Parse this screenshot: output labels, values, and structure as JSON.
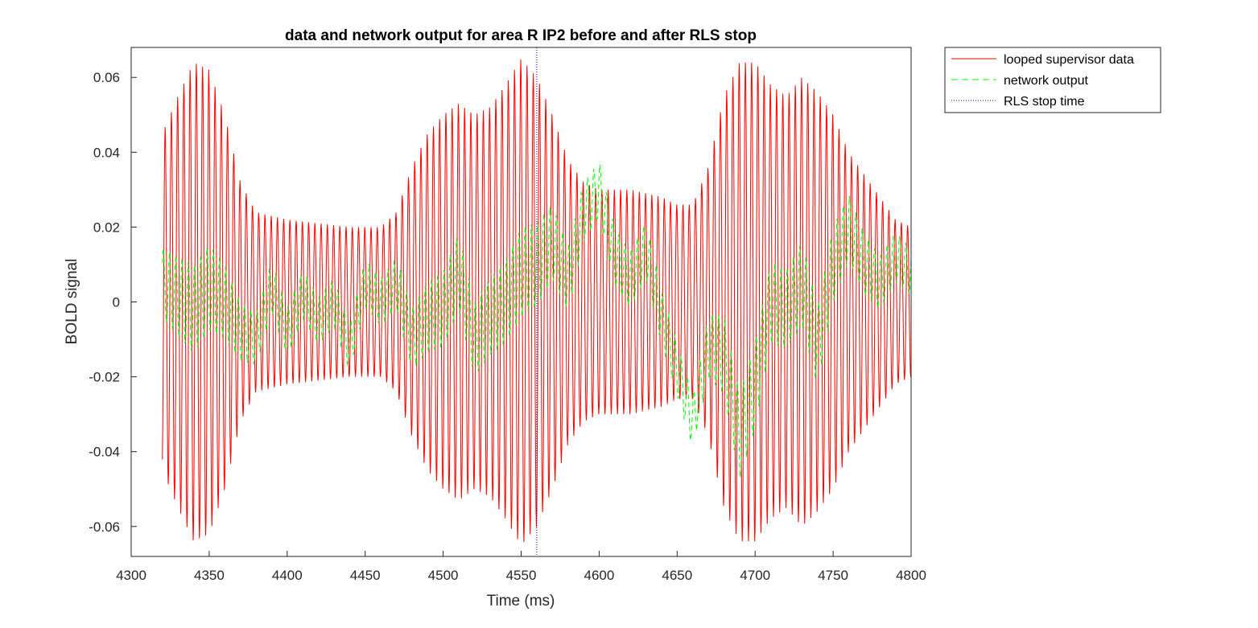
{
  "chart_data": {
    "type": "line",
    "title": "data and network output for area R IP2 before and after RLS stop",
    "xlabel": "Time (ms)",
    "ylabel": "BOLD signal",
    "xlim": [
      4300,
      4800
    ],
    "ylim": [
      -0.068,
      0.068
    ],
    "xticks": [
      4300,
      4350,
      4400,
      4450,
      4500,
      4550,
      4600,
      4650,
      4700,
      4750,
      4800
    ],
    "xtick_labels": [
      "4300",
      "4350",
      "4400",
      "4450",
      "4500",
      "4550",
      "4600",
      "4650",
      "4700",
      "4750",
      "4800"
    ],
    "yticks": [
      -0.06,
      -0.04,
      -0.02,
      0,
      0.02,
      0.04,
      0.06
    ],
    "ytick_labels": [
      "-0.06",
      "-0.04",
      "-0.02",
      "0",
      "0.02",
      "0.04",
      "0.06"
    ],
    "grid": false,
    "legend_position": "outside-top-right",
    "x_sample_range": [
      4320,
      4800
    ],
    "series": [
      {
        "name": "looped supervisor data",
        "style": "solid",
        "color": "#ff0000",
        "oscillation_period_ms": 4,
        "envelope_points": [
          [
            4320,
            0.045
          ],
          [
            4330,
            0.055
          ],
          [
            4340,
            0.064
          ],
          [
            4350,
            0.062
          ],
          [
            4360,
            0.05
          ],
          [
            4370,
            0.032
          ],
          [
            4380,
            0.024
          ],
          [
            4390,
            0.023
          ],
          [
            4400,
            0.022
          ],
          [
            4420,
            0.021
          ],
          [
            4440,
            0.02
          ],
          [
            4460,
            0.02
          ],
          [
            4470,
            0.024
          ],
          [
            4480,
            0.036
          ],
          [
            4490,
            0.045
          ],
          [
            4500,
            0.05
          ],
          [
            4510,
            0.053
          ],
          [
            4520,
            0.05
          ],
          [
            4530,
            0.052
          ],
          [
            4540,
            0.058
          ],
          [
            4550,
            0.065
          ],
          [
            4560,
            0.06
          ],
          [
            4570,
            0.05
          ],
          [
            4580,
            0.038
          ],
          [
            4590,
            0.032
          ],
          [
            4600,
            0.03
          ],
          [
            4620,
            0.03
          ],
          [
            4640,
            0.028
          ],
          [
            4650,
            0.026
          ],
          [
            4660,
            0.026
          ],
          [
            4670,
            0.036
          ],
          [
            4680,
            0.055
          ],
          [
            4690,
            0.064
          ],
          [
            4700,
            0.064
          ],
          [
            4710,
            0.058
          ],
          [
            4720,
            0.055
          ],
          [
            4730,
            0.06
          ],
          [
            4740,
            0.056
          ],
          [
            4750,
            0.05
          ],
          [
            4760,
            0.04
          ],
          [
            4770,
            0.034
          ],
          [
            4780,
            0.028
          ],
          [
            4790,
            0.022
          ],
          [
            4800,
            0.02
          ]
        ]
      },
      {
        "name": "network output",
        "style": "dashed",
        "color": "#00ff00",
        "baseline_points": [
          [
            4320,
            0.005
          ],
          [
            4340,
            -0.002
          ],
          [
            4350,
            0.004
          ],
          [
            4360,
            0.0
          ],
          [
            4370,
            -0.008
          ],
          [
            4380,
            -0.01
          ],
          [
            4390,
            0.004
          ],
          [
            4400,
            -0.008
          ],
          [
            4410,
            0.002
          ],
          [
            4420,
            -0.005
          ],
          [
            4430,
            0.0
          ],
          [
            4440,
            -0.012
          ],
          [
            4450,
            0.005
          ],
          [
            4460,
            0.0
          ],
          [
            4470,
            0.005
          ],
          [
            4480,
            -0.01
          ],
          [
            4490,
            -0.004
          ],
          [
            4500,
            -0.002
          ],
          [
            4510,
            0.008
          ],
          [
            4520,
            -0.01
          ],
          [
            4530,
            -0.004
          ],
          [
            4540,
            0.0
          ],
          [
            4550,
            0.008
          ],
          [
            4560,
            0.01
          ],
          [
            4570,
            0.016
          ],
          [
            4580,
            0.006
          ],
          [
            4590,
            0.024
          ],
          [
            4600,
            0.03
          ],
          [
            4610,
            0.012
          ],
          [
            4620,
            0.006
          ],
          [
            4630,
            0.014
          ],
          [
            4640,
            -0.004
          ],
          [
            4650,
            -0.018
          ],
          [
            4660,
            -0.032
          ],
          [
            4670,
            -0.012
          ],
          [
            4680,
            -0.014
          ],
          [
            4690,
            -0.036
          ],
          [
            4700,
            -0.022
          ],
          [
            4710,
            0.0
          ],
          [
            4720,
            -0.002
          ],
          [
            4730,
            0.005
          ],
          [
            4740,
            -0.012
          ],
          [
            4750,
            0.01
          ],
          [
            4760,
            0.02
          ],
          [
            4770,
            0.01
          ],
          [
            4780,
            0.005
          ],
          [
            4790,
            0.012
          ],
          [
            4800,
            0.008
          ]
        ],
        "ripple_amplitude": 0.008
      },
      {
        "name": "RLS stop time",
        "style": "dotted",
        "color": "#0000cc",
        "x": 4560
      }
    ]
  }
}
